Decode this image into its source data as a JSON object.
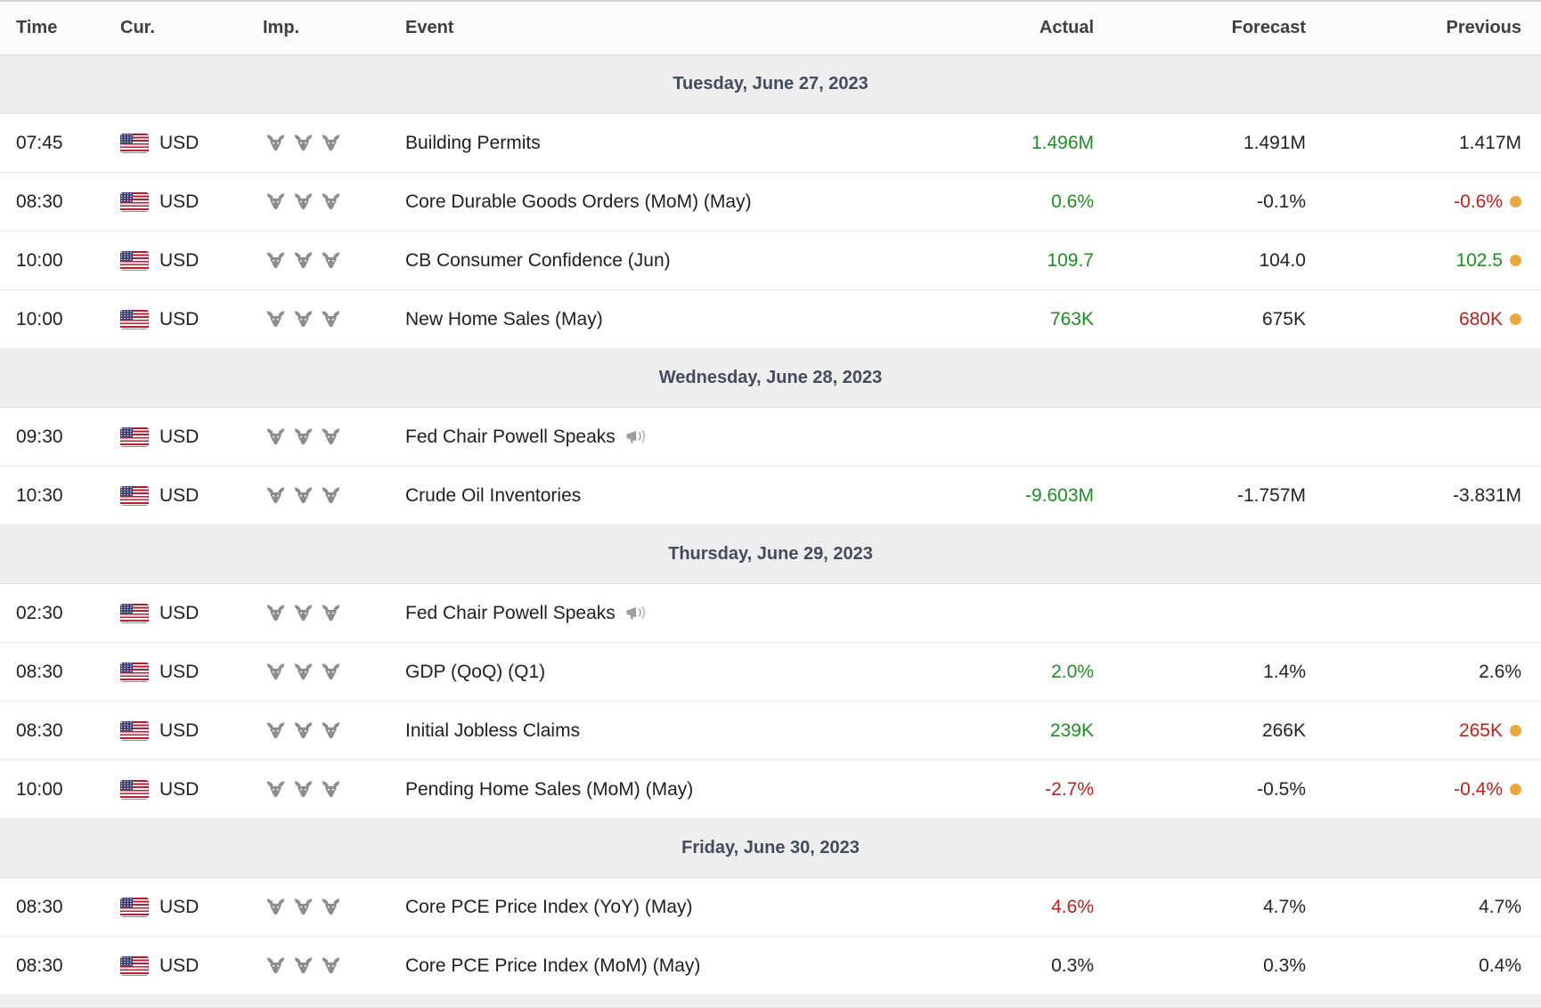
{
  "table": {
    "columns": {
      "time": "Time",
      "currency": "Cur.",
      "importance": "Imp.",
      "event": "Event",
      "actual": "Actual",
      "forecast": "Forecast",
      "previous": "Previous"
    }
  },
  "colors": {
    "positive": "#228b27",
    "negative": "#b32420",
    "neutral": "#242424",
    "revised_dot": "#e9a93c",
    "section_bg": "#eeeeef",
    "section_text": "#424c5c"
  },
  "icons": {
    "importance": "bull-icon",
    "speech": "megaphone-icon",
    "currency_flag": "us-flag-icon",
    "revised": "revised-dot"
  },
  "sections": [
    {
      "date": "Tuesday, June 27, 2023",
      "rows": [
        {
          "time": "07:45",
          "currency": "USD",
          "importance": 3,
          "event": "Building Permits",
          "speech": false,
          "actual": {
            "value": "1.496M",
            "tone": "positive"
          },
          "forecast": {
            "value": "1.491M",
            "tone": "neutral"
          },
          "previous": {
            "value": "1.417M",
            "tone": "neutral",
            "revised": false
          }
        },
        {
          "time": "08:30",
          "currency": "USD",
          "importance": 3,
          "event": "Core Durable Goods Orders (MoM) (May)",
          "speech": false,
          "actual": {
            "value": "0.6%",
            "tone": "positive"
          },
          "forecast": {
            "value": "-0.1%",
            "tone": "neutral"
          },
          "previous": {
            "value": "-0.6%",
            "tone": "negative",
            "revised": true
          }
        },
        {
          "time": "10:00",
          "currency": "USD",
          "importance": 3,
          "event": "CB Consumer Confidence (Jun)",
          "speech": false,
          "actual": {
            "value": "109.7",
            "tone": "positive"
          },
          "forecast": {
            "value": "104.0",
            "tone": "neutral"
          },
          "previous": {
            "value": "102.5",
            "tone": "positive",
            "revised": true
          }
        },
        {
          "time": "10:00",
          "currency": "USD",
          "importance": 3,
          "event": "New Home Sales (May)",
          "speech": false,
          "actual": {
            "value": "763K",
            "tone": "positive"
          },
          "forecast": {
            "value": "675K",
            "tone": "neutral"
          },
          "previous": {
            "value": "680K",
            "tone": "negative",
            "revised": true
          }
        }
      ]
    },
    {
      "date": "Wednesday, June 28, 2023",
      "rows": [
        {
          "time": "09:30",
          "currency": "USD",
          "importance": 3,
          "event": "Fed Chair Powell Speaks",
          "speech": true,
          "actual": {
            "value": "",
            "tone": "neutral"
          },
          "forecast": {
            "value": "",
            "tone": "neutral"
          },
          "previous": {
            "value": "",
            "tone": "neutral",
            "revised": false
          }
        },
        {
          "time": "10:30",
          "currency": "USD",
          "importance": 3,
          "event": "Crude Oil Inventories",
          "speech": false,
          "actual": {
            "value": "-9.603M",
            "tone": "positive"
          },
          "forecast": {
            "value": "-1.757M",
            "tone": "neutral"
          },
          "previous": {
            "value": "-3.831M",
            "tone": "neutral",
            "revised": false
          }
        }
      ]
    },
    {
      "date": "Thursday, June 29, 2023",
      "rows": [
        {
          "time": "02:30",
          "currency": "USD",
          "importance": 3,
          "event": "Fed Chair Powell Speaks",
          "speech": true,
          "actual": {
            "value": "",
            "tone": "neutral"
          },
          "forecast": {
            "value": "",
            "tone": "neutral"
          },
          "previous": {
            "value": "",
            "tone": "neutral",
            "revised": false
          }
        },
        {
          "time": "08:30",
          "currency": "USD",
          "importance": 3,
          "event": "GDP (QoQ) (Q1)",
          "speech": false,
          "actual": {
            "value": "2.0%",
            "tone": "positive"
          },
          "forecast": {
            "value": "1.4%",
            "tone": "neutral"
          },
          "previous": {
            "value": "2.6%",
            "tone": "neutral",
            "revised": false
          }
        },
        {
          "time": "08:30",
          "currency": "USD",
          "importance": 3,
          "event": "Initial Jobless Claims",
          "speech": false,
          "actual": {
            "value": "239K",
            "tone": "positive"
          },
          "forecast": {
            "value": "266K",
            "tone": "neutral"
          },
          "previous": {
            "value": "265K",
            "tone": "negative",
            "revised": true
          }
        },
        {
          "time": "10:00",
          "currency": "USD",
          "importance": 3,
          "event": "Pending Home Sales (MoM) (May)",
          "speech": false,
          "actual": {
            "value": "-2.7%",
            "tone": "negative"
          },
          "forecast": {
            "value": "-0.5%",
            "tone": "neutral"
          },
          "previous": {
            "value": "-0.4%",
            "tone": "negative",
            "revised": true
          }
        }
      ]
    },
    {
      "date": "Friday, June 30, 2023",
      "rows": [
        {
          "time": "08:30",
          "currency": "USD",
          "importance": 3,
          "event": "Core PCE Price Index (YoY) (May)",
          "speech": false,
          "actual": {
            "value": "4.6%",
            "tone": "negative"
          },
          "forecast": {
            "value": "4.7%",
            "tone": "neutral"
          },
          "previous": {
            "value": "4.7%",
            "tone": "neutral",
            "revised": false
          }
        },
        {
          "time": "08:30",
          "currency": "USD",
          "importance": 3,
          "event": "Core PCE Price Index (MoM) (May)",
          "speech": false,
          "actual": {
            "value": "0.3%",
            "tone": "neutral"
          },
          "forecast": {
            "value": "0.3%",
            "tone": "neutral"
          },
          "previous": {
            "value": "0.4%",
            "tone": "neutral",
            "revised": false
          }
        }
      ]
    }
  ]
}
